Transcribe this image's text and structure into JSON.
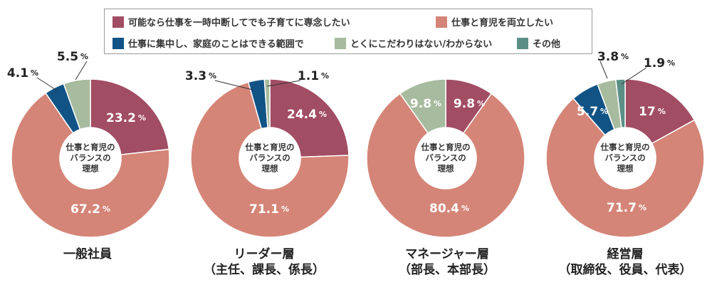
{
  "legend": {
    "items": [
      {
        "label": "可能なら仕事を一時中断してでも子育てに専念したい",
        "color": "#a14d63"
      },
      {
        "label": "仕事と育児を両立したい",
        "color": "#d48577"
      },
      {
        "label": "仕事に集中し、家庭のことはできる範囲で",
        "color": "#115385"
      },
      {
        "label": "とくにこだわりはない/わからない",
        "color": "#a7bb9e"
      },
      {
        "label": "その他",
        "color": "#5b8f86"
      }
    ]
  },
  "center_label": [
    "仕事と育児の",
    "バランスの",
    "理想"
  ],
  "percent_unit": "%",
  "chart_data": [
    {
      "type": "pie",
      "categories": [
        "可能なら仕事を一時中断してでも子育てに専念したい",
        "仕事と育児を両立したい",
        "仕事に集中し、家庭のことはできる範囲で",
        "とくにこだわりはない/わからない"
      ],
      "values": [
        23.2,
        67.2,
        4.1,
        5.5
      ],
      "value_labels": [
        "23.2",
        "67.2",
        "4.1",
        "5.5"
      ],
      "group_label": [
        "一般社員"
      ]
    },
    {
      "type": "pie",
      "categories": [
        "可能なら仕事を一時中断してでも子育てに専念したい",
        "仕事と育児を両立したい",
        "仕事に集中し、家庭のことはできる範囲で",
        "とくにこだわりはない/わからない"
      ],
      "values": [
        24.4,
        71.1,
        3.3,
        1.1
      ],
      "value_labels": [
        "24.4",
        "71.1",
        "3.3",
        "1.1"
      ],
      "group_label": [
        "リーダー層",
        "（主任、課長、係長）"
      ]
    },
    {
      "type": "pie",
      "categories": [
        "可能なら仕事を一時中断してでも子育てに専念したい",
        "仕事と育児を両立したい",
        "とくにこだわりはない/わからない"
      ],
      "values": [
        9.8,
        80.4,
        9.8
      ],
      "value_labels": [
        "9.8",
        "80.4",
        "9.8"
      ],
      "group_label": [
        "マネージャー層",
        "（部長、本部長）"
      ]
    },
    {
      "type": "pie",
      "categories": [
        "可能なら仕事を一時中断してでも子育てに専念したい",
        "仕事と育児を両立したい",
        "仕事に集中し、家庭のことはできる範囲で",
        "とくにこだわりはない/わからない",
        "その他"
      ],
      "values": [
        17,
        71.7,
        5.7,
        3.8,
        1.9
      ],
      "value_labels": [
        "17",
        "71.7",
        "5.7",
        "3.8",
        "1.9"
      ],
      "group_label": [
        "経営層",
        "（取締役、役員、代表）"
      ]
    }
  ]
}
